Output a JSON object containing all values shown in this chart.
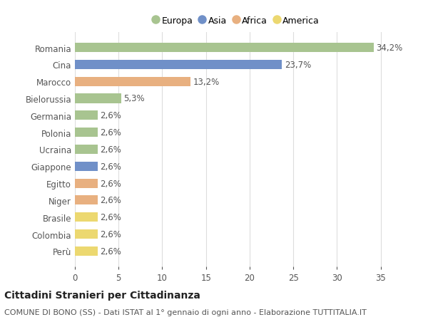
{
  "categories": [
    "Romania",
    "Cina",
    "Marocco",
    "Bielorussia",
    "Germania",
    "Polonia",
    "Ucraina",
    "Giappone",
    "Egitto",
    "Niger",
    "Brasile",
    "Colombia",
    "Perù"
  ],
  "values": [
    34.2,
    23.7,
    13.2,
    5.3,
    2.6,
    2.6,
    2.6,
    2.6,
    2.6,
    2.6,
    2.6,
    2.6,
    2.6
  ],
  "continents": [
    "Europa",
    "Asia",
    "Africa",
    "Europa",
    "Europa",
    "Europa",
    "Europa",
    "Asia",
    "Africa",
    "Africa",
    "America",
    "America",
    "America"
  ],
  "continent_colors": {
    "Europa": "#a8c490",
    "Asia": "#7090c8",
    "Africa": "#e8b080",
    "America": "#ecd870"
  },
  "labels": [
    "34,2%",
    "23,7%",
    "13,2%",
    "5,3%",
    "2,6%",
    "2,6%",
    "2,6%",
    "2,6%",
    "2,6%",
    "2,6%",
    "2,6%",
    "2,6%",
    "2,6%"
  ],
  "xlim": [
    0,
    37
  ],
  "xticks": [
    0,
    5,
    10,
    15,
    20,
    25,
    30,
    35
  ],
  "title": "Cittadini Stranieri per Cittadinanza",
  "subtitle": "COMUNE DI BONO (SS) - Dati ISTAT al 1° gennaio di ogni anno - Elaborazione TUTTITALIA.IT",
  "legend_order": [
    "Europa",
    "Asia",
    "Africa",
    "America"
  ],
  "background_color": "#ffffff",
  "grid_color": "#dddddd",
  "bar_height": 0.55,
  "label_fontsize": 8.5,
  "title_fontsize": 10,
  "subtitle_fontsize": 8,
  "ytick_fontsize": 8.5,
  "xtick_fontsize": 8.5
}
